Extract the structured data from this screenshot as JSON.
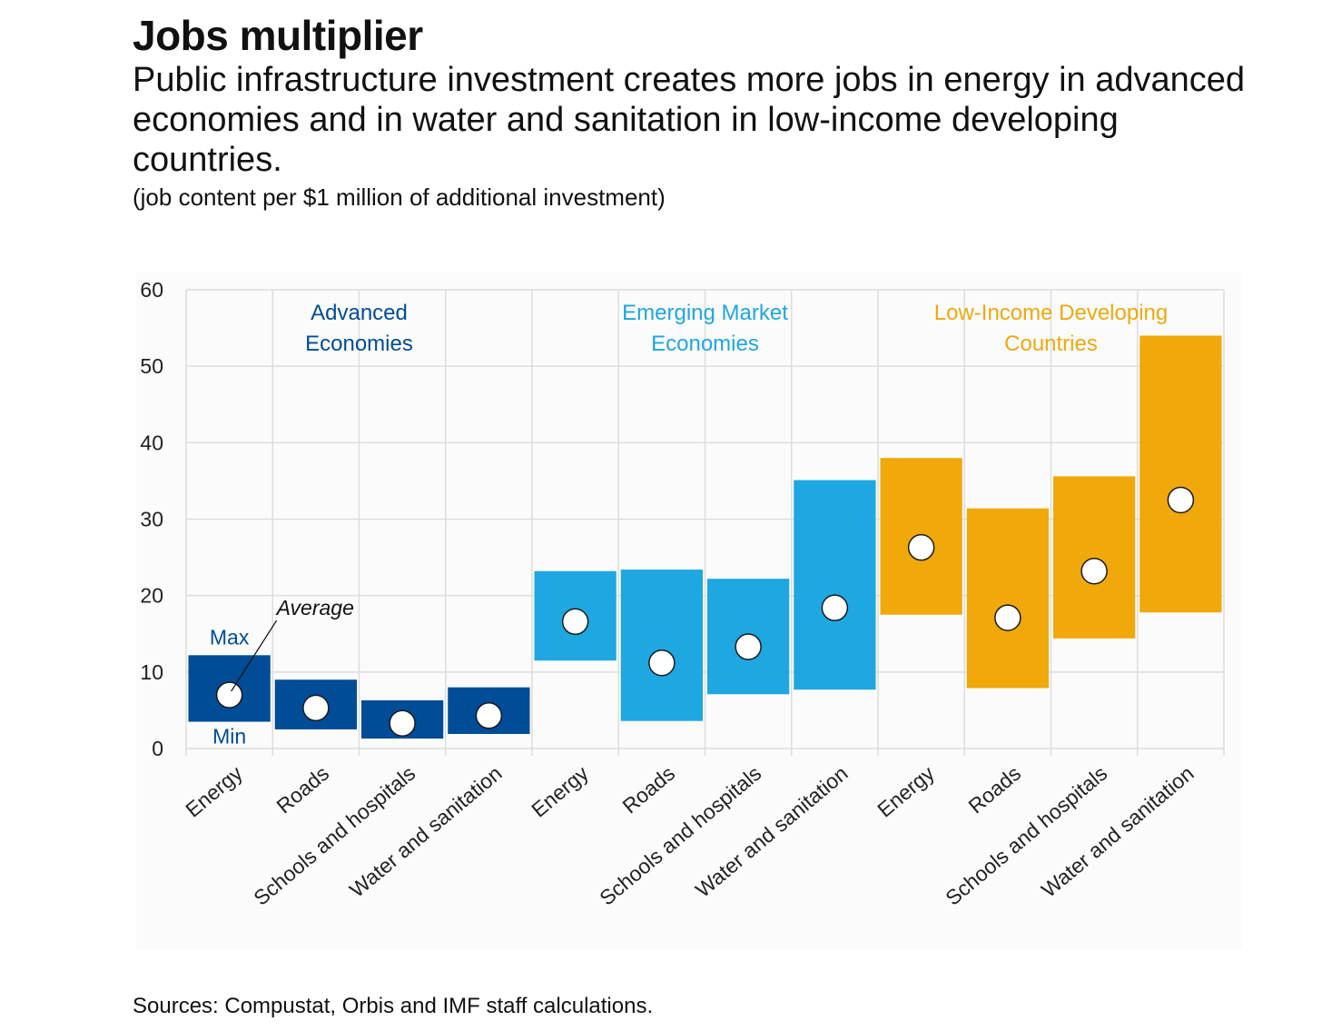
{
  "title": "Jobs multiplier",
  "subtitle": "Public infrastructure investment creates more jobs in energy in advanced economies and in water and sanitation in low-income developing countries.",
  "units_note": "(job content per $1 million of additional investment)",
  "source": "Sources: Compustat, Orbis and IMF staff calculations.",
  "colors": {
    "advanced": "#004c97",
    "emerging": "#1ea7e1",
    "low_income": "#f0a80b",
    "grid": "#dddddd",
    "marker_fill": "#ffffff"
  },
  "annotations": {
    "max": "Max",
    "min": "Min",
    "average": "Average"
  },
  "chart_data": {
    "type": "range-bar",
    "y_ticks": [
      "0",
      "10",
      "20",
      "30",
      "40",
      "50",
      "60"
    ],
    "ylim": [
      0,
      60
    ],
    "grid": true,
    "groups": [
      {
        "name_lines": [
          "Advanced",
          "Economies"
        ],
        "color_key": "advanced",
        "items": [
          {
            "category": "Energy",
            "min": 3.5,
            "max": 12.2,
            "average": 7.0
          },
          {
            "category": "Roads",
            "min": 2.5,
            "max": 9.0,
            "average": 5.3
          },
          {
            "category": "Schools and hospitals",
            "min": 1.3,
            "max": 6.3,
            "average": 3.3
          },
          {
            "category": "Water and sanitation",
            "min": 1.9,
            "max": 8.0,
            "average": 4.3
          }
        ]
      },
      {
        "name_lines": [
          "Emerging Market",
          "Economies"
        ],
        "color_key": "emerging",
        "items": [
          {
            "category": "Energy",
            "min": 11.5,
            "max": 23.2,
            "average": 16.6
          },
          {
            "category": "Roads",
            "min": 3.6,
            "max": 23.4,
            "average": 11.2
          },
          {
            "category": "Schools and hospitals",
            "min": 7.1,
            "max": 22.2,
            "average": 13.3
          },
          {
            "category": "Water and sanitation",
            "min": 7.7,
            "max": 35.1,
            "average": 18.4
          }
        ]
      },
      {
        "name_lines": [
          "Low-Income Developing",
          "Countries"
        ],
        "color_key": "low_income",
        "items": [
          {
            "category": "Energy",
            "min": 17.5,
            "max": 38.0,
            "average": 26.3
          },
          {
            "category": "Roads",
            "min": 7.9,
            "max": 31.4,
            "average": 17.1
          },
          {
            "category": "Schools and hospitals",
            "min": 14.4,
            "max": 35.6,
            "average": 23.2
          },
          {
            "category": "Water and sanitation",
            "min": 17.8,
            "max": 54.0,
            "average": 32.5
          }
        ]
      }
    ]
  }
}
